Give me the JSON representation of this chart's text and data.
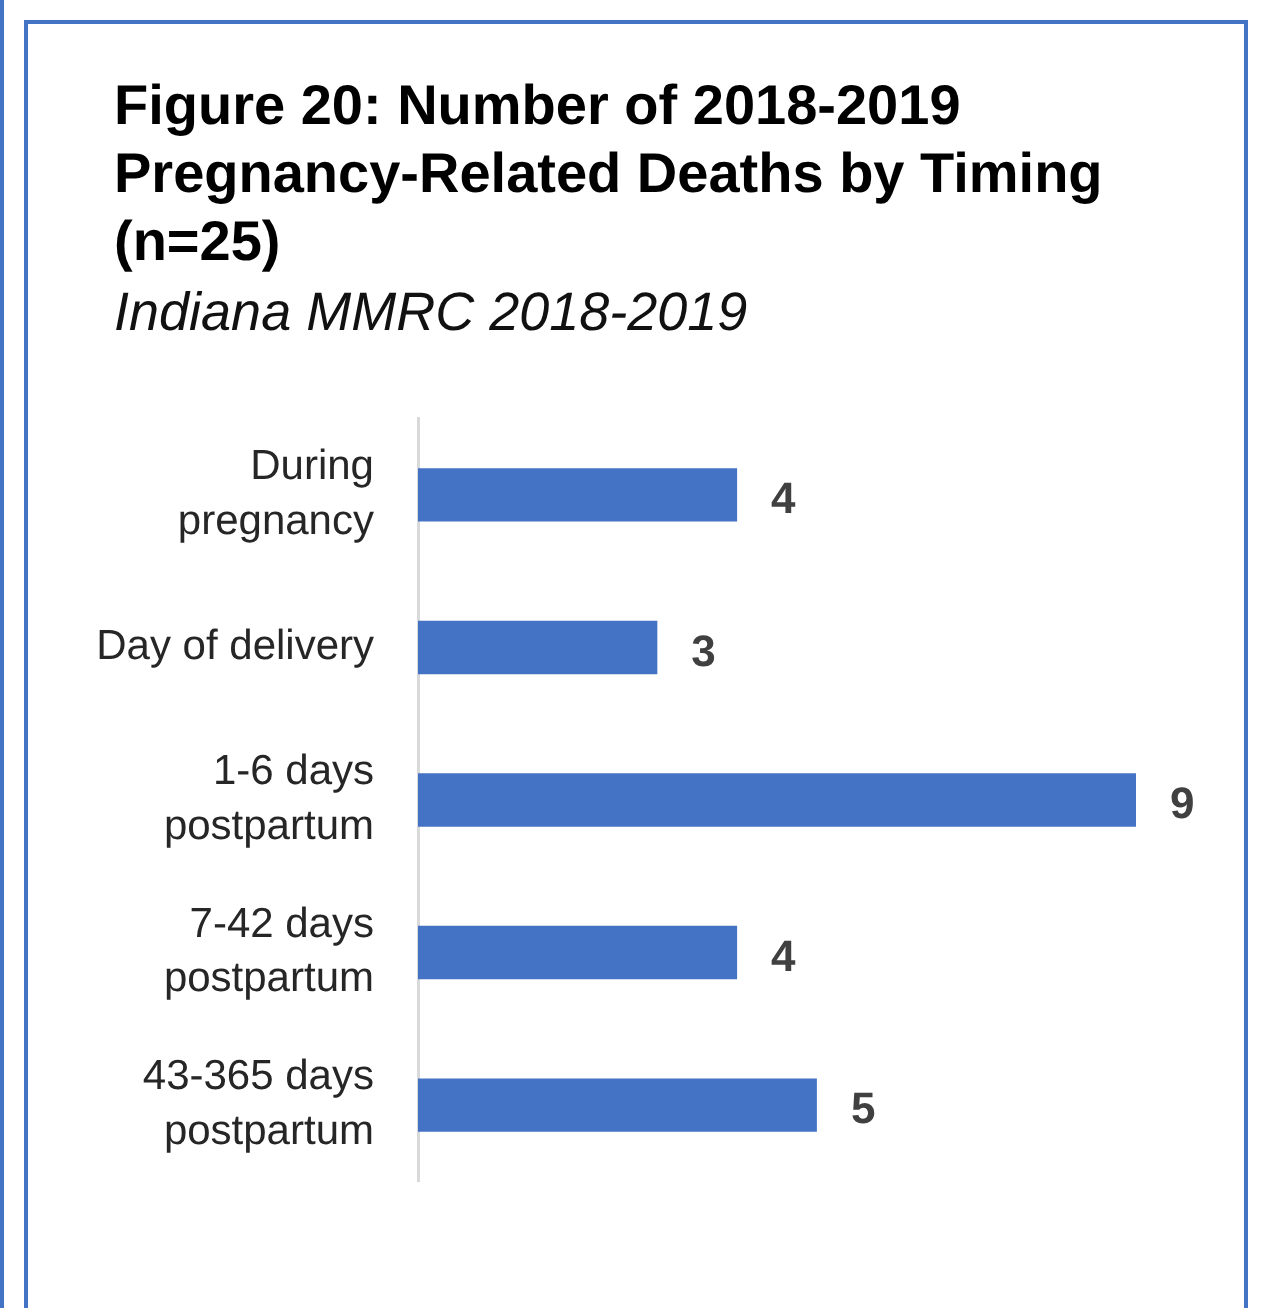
{
  "chart_data": {
    "type": "bar",
    "orientation": "horizontal",
    "title": "Figure 20: Number of 2018-2019 Pregnancy-Related Deaths by Timing (n=25)",
    "subtitle": "Indiana MMRC 2018-2019",
    "categories": [
      "During pregnancy",
      "Day of delivery",
      "1-6 days postpartum",
      "7-42 days postpartum",
      "43-365 days postpartum"
    ],
    "values": [
      4,
      3,
      9,
      4,
      5
    ],
    "color": "#4472c4",
    "data_labels": true,
    "tick_labels": "y"
  }
}
